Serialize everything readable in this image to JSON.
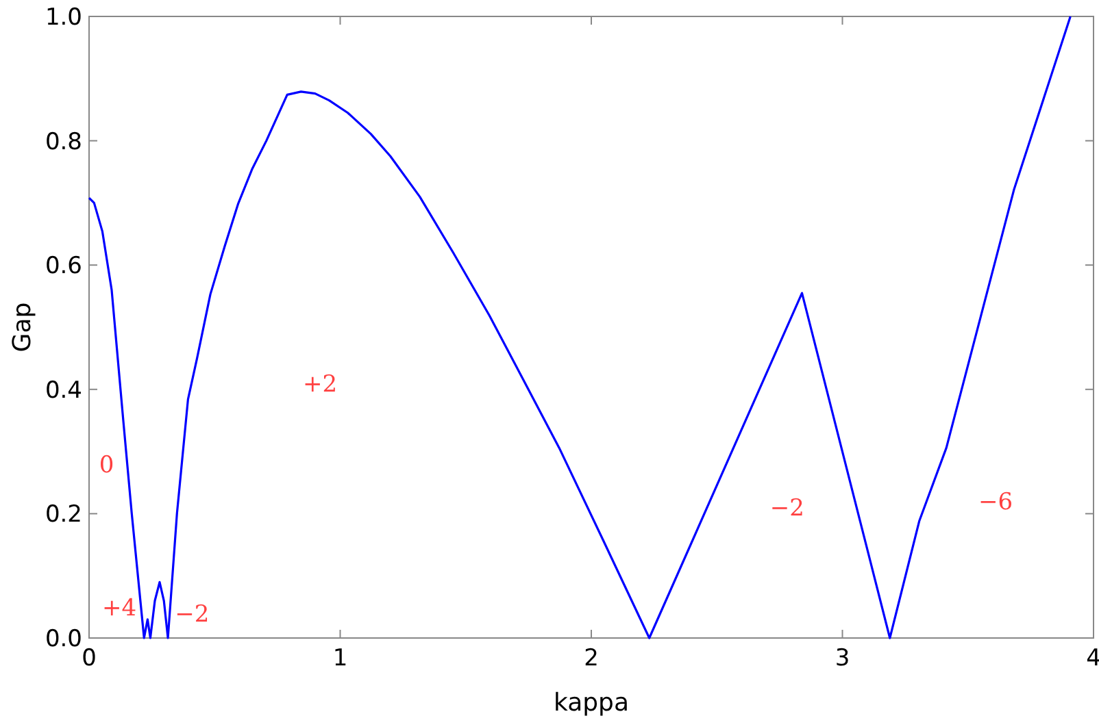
{
  "chart_data": {
    "type": "line",
    "xlabel": "kappa",
    "ylabel": "Gap",
    "x": [
      0,
      0.02,
      0.053,
      0.09,
      0.136,
      0.17,
      0.219,
      0.233,
      0.244,
      0.262,
      0.281,
      0.298,
      0.314,
      0.35,
      0.394,
      0.43,
      0.483,
      0.54,
      0.594,
      0.65,
      0.706,
      0.789,
      0.844,
      0.9,
      0.956,
      1.03,
      1.122,
      1.2,
      1.317,
      1.45,
      1.594,
      1.73,
      1.872,
      2.05,
      2.231,
      2.839,
      3.189,
      3.306,
      3.414,
      3.683,
      3.908
    ],
    "series": [
      {
        "color": "#0000ff",
        "values": [
          0.708,
          0.7,
          0.654,
          0.56,
          0.351,
          0.2,
          0,
          0.03,
          0,
          0.06,
          0.09,
          0.06,
          0,
          0.2,
          0.384,
          0.45,
          0.553,
          0.63,
          0.699,
          0.755,
          0.8,
          0.874,
          0.879,
          0.876,
          0.865,
          0.845,
          0.811,
          0.775,
          0.71,
          0.62,
          0.519,
          0.415,
          0.306,
          0.155,
          0,
          0.555,
          0,
          0.188,
          0.306,
          0.721,
          1.0
        ]
      }
    ],
    "xlim": [
      0,
      4
    ],
    "ylim": [
      0,
      1
    ],
    "xticks": [
      0,
      1,
      2,
      3,
      4
    ],
    "yticks": [
      {
        "value": 0,
        "label": "0.0"
      },
      0.2,
      0.4,
      0.6,
      0.8,
      {
        "value": 1,
        "label": "1.0"
      }
    ],
    "grid": false,
    "marker": "none",
    "line_style": "solid",
    "annotations": [
      "0",
      "+4",
      "−2",
      "+2",
      "−2",
      "−6"
    ]
  }
}
